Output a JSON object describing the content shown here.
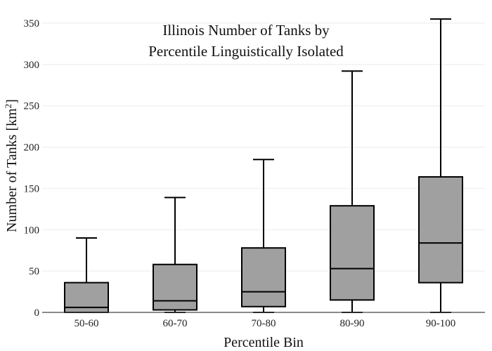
{
  "chart_data": {
    "type": "box",
    "title_lines": [
      "Illinois Number of Tanks by",
      "Percentile Linguistically Isolated"
    ],
    "xlabel": "Percentile Bin",
    "ylabel_main": "Number of Tanks  [km",
    "ylabel_sup": "2",
    "ylabel_end": "]",
    "ylim": [
      0,
      360
    ],
    "yticks": [
      0,
      50,
      100,
      150,
      200,
      250,
      300,
      350
    ],
    "grid": true,
    "categories": [
      "50-60",
      "60-70",
      "70-80",
      "80-90",
      "90-100"
    ],
    "boxes": [
      {
        "category": "50-60",
        "min": 0,
        "q1": 0,
        "median": 6,
        "q3": 36,
        "max": 90
      },
      {
        "category": "60-70",
        "min": 0,
        "q1": 3,
        "median": 14,
        "q3": 58,
        "max": 139
      },
      {
        "category": "70-80",
        "min": 0,
        "q1": 7,
        "median": 25,
        "q3": 78,
        "max": 185
      },
      {
        "category": "80-90",
        "min": 0,
        "q1": 15,
        "median": 53,
        "q3": 129,
        "max": 292
      },
      {
        "category": "90-100",
        "min": 0,
        "q1": 36,
        "median": 84,
        "q3": 164,
        "max": 355
      }
    ],
    "colors": {
      "box_fill": "#a0a0a0",
      "box_stroke": "#000000"
    }
  }
}
